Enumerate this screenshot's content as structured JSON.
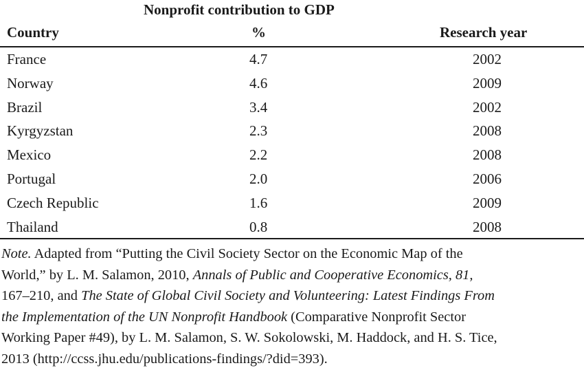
{
  "table": {
    "super_header": "Nonprofit contribution to GDP",
    "columns": {
      "country": "Country",
      "percent": "%",
      "year": "Research year"
    },
    "rows": [
      {
        "country": "France",
        "percent": "4.7",
        "year": "2002"
      },
      {
        "country": "Norway",
        "percent": "4.6",
        "year": "2009"
      },
      {
        "country": "Brazil",
        "percent": "3.4",
        "year": "2002"
      },
      {
        "country": "Kyrgyzstan",
        "percent": "2.3",
        "year": "2008"
      },
      {
        "country": "Mexico",
        "percent": "2.2",
        "year": "2008"
      },
      {
        "country": "Portugal",
        "percent": "2.0",
        "year": "2006"
      },
      {
        "country": "Czech Republic",
        "percent": "1.6",
        "year": "2009"
      },
      {
        "country": "Thailand",
        "percent": "0.8",
        "year": "2008"
      }
    ]
  },
  "note": {
    "label": "Note.",
    "l1_text": " Adapted from “Putting the Civil Society Sector on the Economic Map of the",
    "l2_text": "World,” by L. M. Salamon, 2010, ",
    "l2_journal": "Annals of Public and Cooperative Economics, 81,",
    "l3_text": "167–210, and ",
    "l3_title": "The State of Global Civil Society and Volunteering: Latest Findings From",
    "l4_title": "the Implementation of the UN Nonprofit Handbook",
    "l4_text": " (Comparative Nonprofit Sector",
    "l5_text": "Working Paper #49), by L. M. Salamon, S. W. Sokolowski, M. Haddock, and H. S. Tice,",
    "l6_text": "2013 (http://ccss.jhu.edu/publications-findings/?did=393)."
  }
}
